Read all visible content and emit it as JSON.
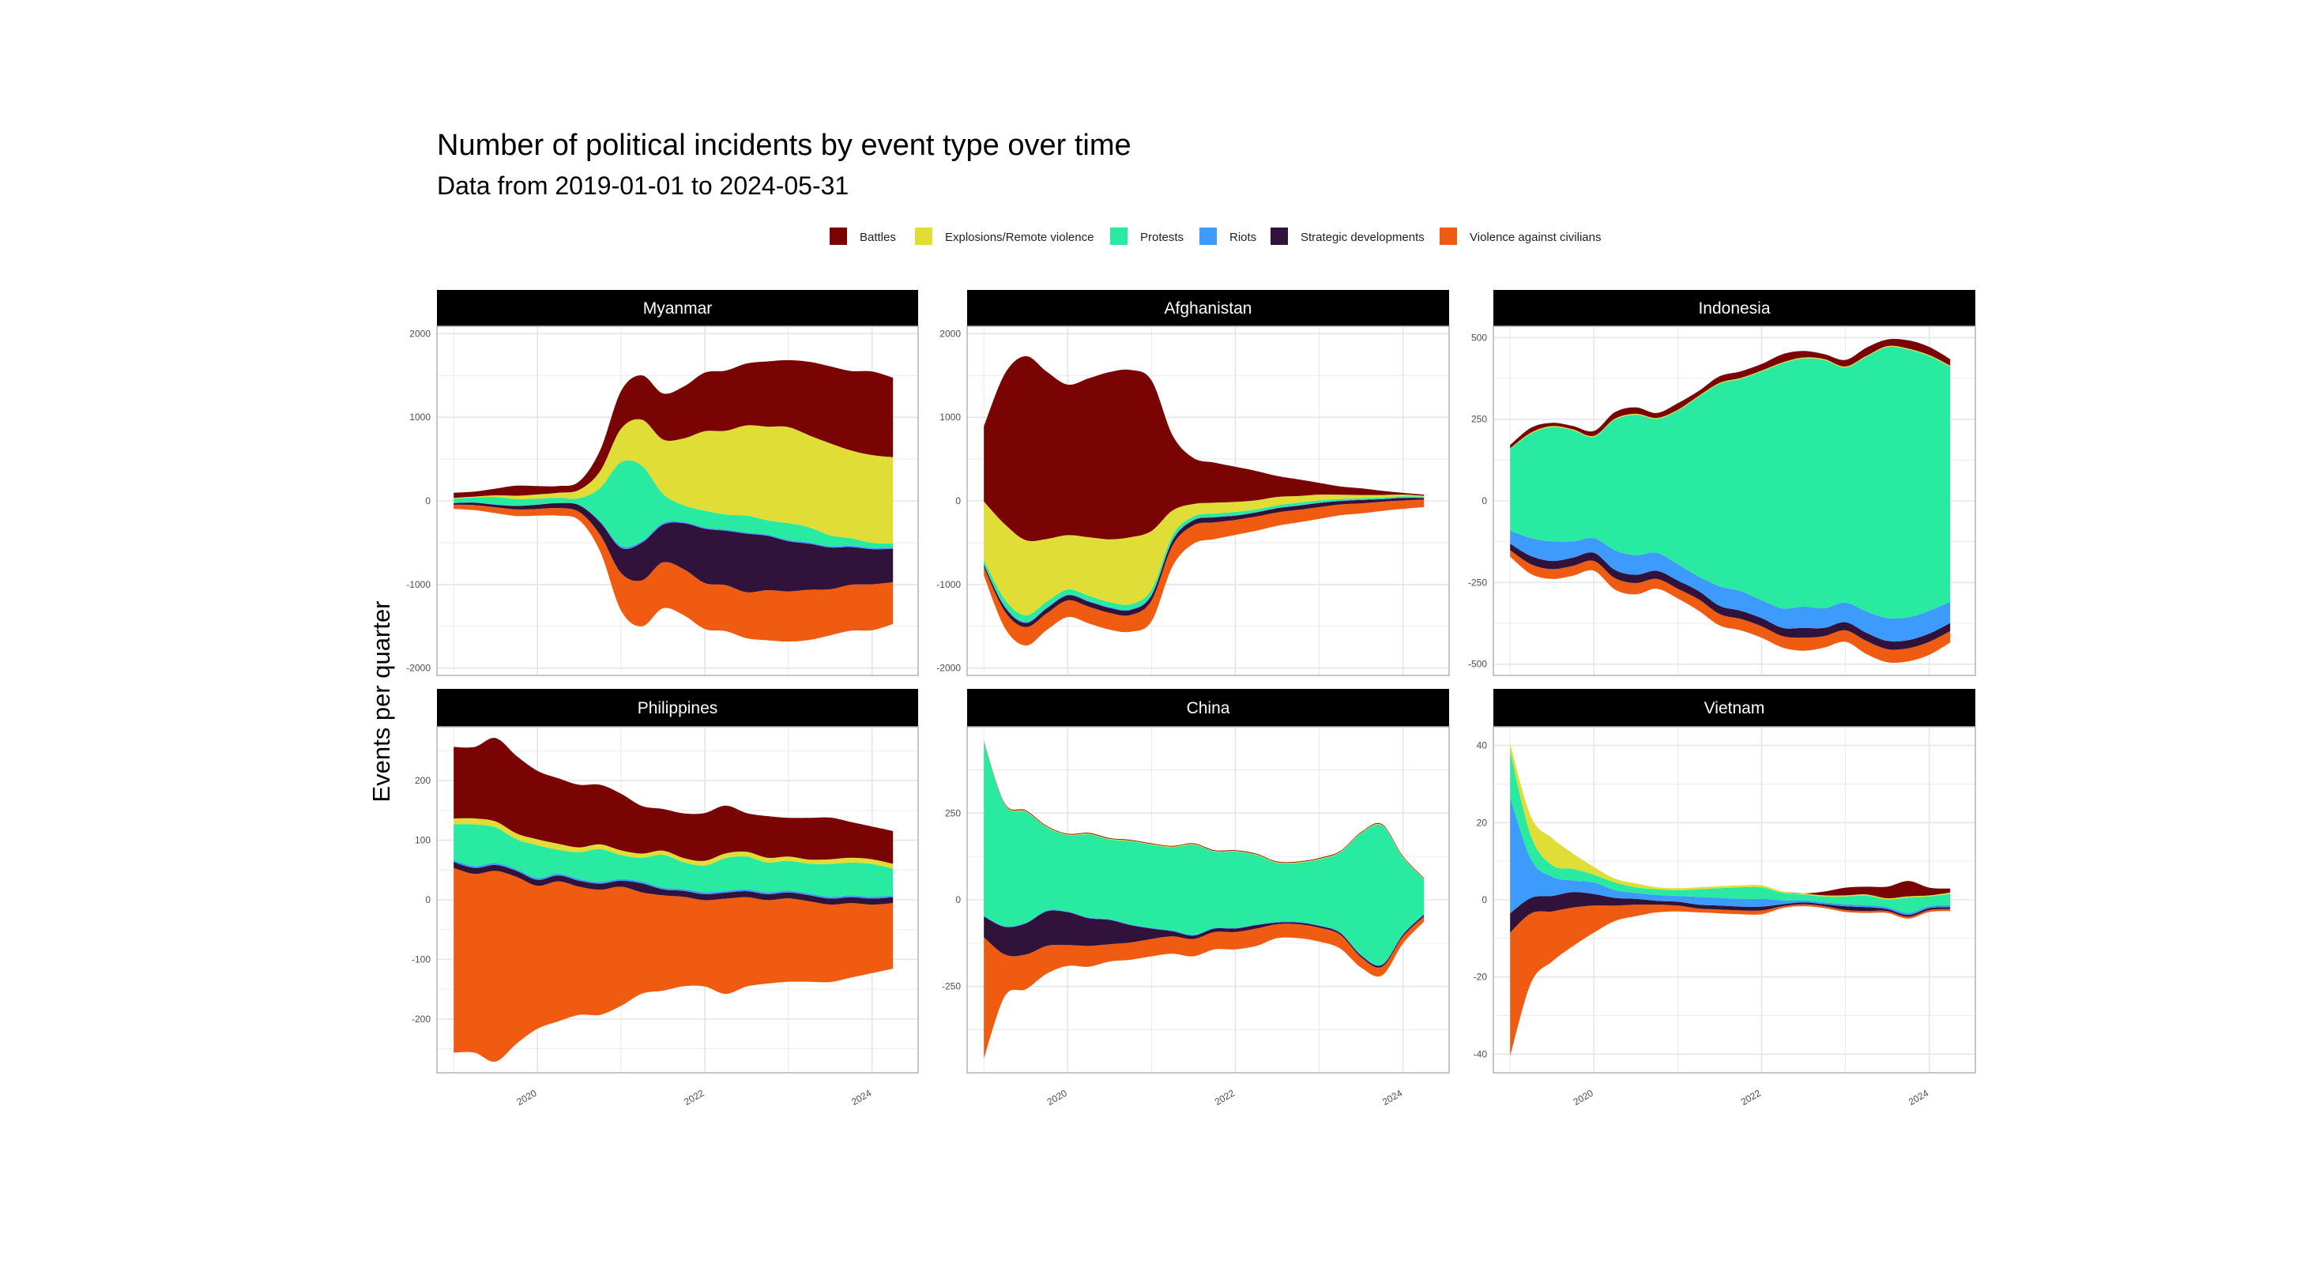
{
  "chart_data": {
    "type": "area",
    "title": "Number of political incidents by event type over time",
    "subtitle": "Data from 2019-01-01 to 2024-05-31",
    "ylabel": "Events per quarter",
    "legend_position": "top",
    "grid": true,
    "series_names": [
      "Battles",
      "Explosions/Remote violence",
      "Protests",
      "Riots",
      "Strategic developments",
      "Violence against civilians"
    ],
    "colors": {
      "Battles": "#7a0403",
      "Explosions/Remote violence": "#e1dd37",
      "Protests": "#28eaa0",
      "Riots": "#3e9bfe",
      "Strategic developments": "#30123b",
      "Violence against civilians": "#f05b12"
    },
    "x_ticks": [
      "2020",
      "2022",
      "2024"
    ],
    "x": [
      2019.0,
      2019.25,
      2019.5,
      2019.75,
      2020.0,
      2020.25,
      2020.5,
      2020.75,
      2021.0,
      2021.25,
      2021.5,
      2021.75,
      2022.0,
      2022.25,
      2022.5,
      2022.75,
      2023.0,
      2023.25,
      2023.5,
      2023.75,
      2024.0,
      2024.25
    ],
    "panels": [
      {
        "title": "Myanmar",
        "y_ticks": [
          "2000",
          "1000",
          "0",
          "-1000",
          "-2000"
        ],
        "ylim": [
          -2050,
          2050
        ],
        "series": {
          "Battles": [
            60,
            60,
            80,
            120,
            100,
            80,
            100,
            250,
            450,
            530,
            550,
            620,
            700,
            720,
            740,
            780,
            800,
            880,
            920,
            950,
            1000,
            950
          ],
          "Explosions/Remote violence": [
            10,
            10,
            20,
            40,
            50,
            60,
            100,
            200,
            400,
            550,
            650,
            800,
            950,
            1000,
            1080,
            1120,
            1150,
            1100,
            1100,
            1050,
            1050,
            1030
          ],
          "Protests": [
            50,
            60,
            90,
            80,
            70,
            60,
            80,
            400,
            1000,
            900,
            350,
            200,
            200,
            180,
            200,
            170,
            200,
            180,
            130,
            90,
            60,
            50
          ],
          "Riots": [
            2,
            2,
            3,
            3,
            3,
            3,
            4,
            10,
            25,
            20,
            20,
            15,
            15,
            15,
            15,
            15,
            15,
            15,
            15,
            15,
            15,
            15
          ],
          "Strategic developments": [
            20,
            30,
            30,
            40,
            50,
            60,
            80,
            150,
            300,
            450,
            450,
            550,
            650,
            650,
            700,
            650,
            600,
            550,
            500,
            450,
            420,
            400
          ],
          "Violence against civilians": [
            50,
            60,
            70,
            80,
            80,
            90,
            100,
            200,
            450,
            550,
            550,
            550,
            550,
            550,
            550,
            600,
            600,
            600,
            550,
            550,
            550,
            500
          ]
        }
      },
      {
        "title": "Afghanistan",
        "y_ticks": [
          "2000",
          "1000",
          "0",
          "-1000",
          "-2000"
        ],
        "ylim": [
          -2050,
          2050
        ],
        "series": {
          "Battles": [
            900,
            1800,
            2200,
            2000,
            1800,
            1900,
            2000,
            2000,
            1800,
            900,
            550,
            480,
            420,
            350,
            250,
            200,
            140,
            100,
            80,
            50,
            20,
            15
          ],
          "Explosions/Remote violence": [
            700,
            900,
            900,
            750,
            650,
            700,
            750,
            800,
            700,
            300,
            150,
            130,
            120,
            110,
            100,
            80,
            70,
            50,
            40,
            30,
            20,
            10
          ],
          "Protests": [
            50,
            80,
            80,
            70,
            60,
            60,
            60,
            60,
            60,
            50,
            40,
            40,
            40,
            30,
            30,
            30,
            25,
            20,
            15,
            15,
            15,
            10
          ],
          "Riots": [
            5,
            10,
            10,
            10,
            10,
            10,
            10,
            10,
            10,
            10,
            5,
            5,
            5,
            5,
            5,
            5,
            5,
            5,
            5,
            5,
            5,
            5
          ],
          "Strategic developments": [
            30,
            50,
            50,
            60,
            60,
            60,
            60,
            60,
            60,
            60,
            60,
            60,
            50,
            50,
            50,
            50,
            50,
            40,
            40,
            30,
            30,
            20
          ],
          "Violence against civilians": [
            100,
            200,
            220,
            200,
            200,
            200,
            200,
            200,
            250,
            250,
            220,
            200,
            180,
            170,
            160,
            150,
            140,
            130,
            120,
            110,
            100,
            90
          ]
        }
      },
      {
        "title": "Indonesia",
        "y_ticks": [
          "500",
          "250",
          "0",
          "-250",
          "-500"
        ],
        "ylim": [
          -525,
          525
        ],
        "series": {
          "Battles": [
            10,
            15,
            10,
            10,
            15,
            20,
            20,
            15,
            20,
            15,
            20,
            20,
            20,
            25,
            20,
            15,
            20,
            25,
            20,
            25,
            25,
            20
          ],
          "Explosions/Remote violence": [
            2,
            3,
            3,
            3,
            3,
            3,
            3,
            3,
            3,
            3,
            3,
            3,
            3,
            3,
            3,
            3,
            3,
            3,
            3,
            3,
            3,
            3
          ],
          "Protests": [
            250,
            320,
            350,
            340,
            310,
            400,
            430,
            410,
            470,
            550,
            620,
            650,
            700,
            750,
            760,
            760,
            720,
            780,
            830,
            820,
            780,
            720
          ],
          "Riots": [
            40,
            55,
            60,
            50,
            45,
            60,
            60,
            55,
            50,
            45,
            60,
            60,
            55,
            60,
            65,
            60,
            60,
            65,
            70,
            70,
            70,
            65
          ],
          "Strategic developments": [
            20,
            25,
            25,
            25,
            25,
            25,
            25,
            25,
            25,
            25,
            25,
            25,
            25,
            25,
            30,
            25,
            25,
            25,
            25,
            25,
            25,
            25
          ],
          "Violence against civilians": [
            20,
            30,
            30,
            30,
            30,
            35,
            35,
            30,
            30,
            35,
            35,
            35,
            35,
            35,
            40,
            35,
            35,
            40,
            40,
            40,
            40,
            35
          ]
        }
      },
      {
        "title": "Philippines",
        "y_ticks": [
          "200",
          "100",
          "0",
          "-100",
          "-200"
        ],
        "ylim": [
          -285,
          285
        ],
        "series": {
          "Battles": [
            120,
            120,
            140,
            130,
            115,
            110,
            105,
            100,
            95,
            80,
            70,
            75,
            80,
            80,
            65,
            70,
            65,
            70,
            70,
            60,
            55,
            55
          ],
          "Explosions/Remote violence": [
            10,
            10,
            10,
            10,
            10,
            10,
            8,
            8,
            8,
            7,
            7,
            7,
            8,
            8,
            8,
            8,
            7,
            7,
            8,
            8,
            8,
            8
          ],
          "Protests": [
            60,
            70,
            60,
            50,
            55,
            40,
            45,
            55,
            40,
            40,
            55,
            45,
            45,
            55,
            55,
            50,
            50,
            50,
            55,
            55,
            55,
            45
          ],
          "Riots": [
            3,
            3,
            3,
            3,
            3,
            3,
            3,
            3,
            3,
            3,
            3,
            3,
            3,
            3,
            3,
            3,
            3,
            3,
            3,
            3,
            3,
            3
          ],
          "Strategic developments": [
            10,
            10,
            10,
            10,
            10,
            10,
            10,
            10,
            10,
            15,
            10,
            10,
            10,
            10,
            10,
            10,
            10,
            10,
            10,
            10,
            10,
            10
          ],
          "Violence against civilians": [
            310,
            300,
            320,
            280,
            240,
            235,
            215,
            210,
            200,
            170,
            160,
            150,
            145,
            160,
            150,
            140,
            140,
            135,
            130,
            125,
            115,
            110
          ]
        }
      },
      {
        "title": "China",
        "y_ticks": [
          "250",
          "0",
          "-250"
        ],
        "ylim": [
          -490,
          490
        ],
        "series": {
          "Battles": [
            2,
            2,
            2,
            2,
            2,
            2,
            2,
            2,
            2,
            2,
            2,
            2,
            2,
            2,
            2,
            2,
            2,
            2,
            2,
            2,
            2,
            2
          ],
          "Explosions/Remote violence": [
            2,
            2,
            2,
            2,
            2,
            2,
            2,
            2,
            2,
            2,
            2,
            2,
            2,
            2,
            2,
            2,
            2,
            2,
            2,
            2,
            2,
            2
          ],
          "Protests": [
            500,
            350,
            320,
            240,
            220,
            240,
            230,
            240,
            240,
            240,
            260,
            220,
            220,
            200,
            170,
            170,
            190,
            230,
            350,
            400,
            220,
            100
          ],
          "Riots": [
            2,
            2,
            2,
            2,
            2,
            2,
            2,
            2,
            2,
            2,
            2,
            2,
            2,
            2,
            2,
            2,
            2,
            2,
            2,
            2,
            2,
            2
          ],
          "Strategic developments": [
            60,
            80,
            90,
            100,
            95,
            80,
            70,
            50,
            30,
            15,
            10,
            10,
            10,
            10,
            5,
            5,
            5,
            5,
            5,
            5,
            5,
            5
          ],
          "Violence against civilians": [
            350,
            120,
            100,
            80,
            60,
            60,
            50,
            50,
            50,
            50,
            50,
            50,
            50,
            50,
            40,
            40,
            40,
            40,
            30,
            25,
            20,
            15
          ]
        }
      },
      {
        "title": "Vietnam",
        "y_ticks": [
          "40",
          "20",
          "0",
          "-20",
          "-40"
        ],
        "ylim": [
          -44,
          44
        ],
        "series": {
          "Battles": [
            0,
            0,
            0,
            0,
            0,
            0,
            0,
            0,
            0,
            0,
            0,
            0,
            0,
            0,
            0,
            1,
            2,
            2,
            3,
            4,
            2,
            1
          ],
          "Explosions/Remote violence": [
            2,
            5,
            7,
            4,
            2,
            1,
            1,
            0.5,
            0.5,
            0.5,
            0.5,
            0.5,
            0.5,
            0.3,
            0.3,
            0.3,
            0.3,
            0.3,
            0.3,
            0.3,
            0.3,
            0.3
          ],
          "Protests": [
            12,
            6,
            3,
            3,
            2,
            2,
            1.5,
            1.5,
            1.5,
            2,
            2.5,
            3,
            3,
            2,
            1.5,
            1.5,
            2,
            2.5,
            2,
            4,
            2.5,
            3
          ],
          "Riots": [
            30,
            10,
            5,
            3,
            3,
            2,
            1.5,
            1.5,
            1.5,
            2,
            2,
            2,
            2,
            1,
            0.5,
            0.5,
            0.5,
            0.5,
            0.5,
            0.5,
            0.5,
            0.5
          ],
          "Strategic developments": [
            5,
            4,
            4,
            4,
            3,
            2,
            1.5,
            1,
            1,
            1,
            1,
            1,
            1,
            0.5,
            0.5,
            0.5,
            1,
            1,
            0.5,
            0.5,
            0.5,
            0.5
          ],
          "Violence against civilians": [
            32,
            18,
            13,
            10,
            7,
            4,
            3,
            2,
            1.5,
            1,
            1,
            1,
            1,
            0.5,
            0.5,
            0.5,
            0.5,
            0.5,
            0.5,
            0.5,
            0.5,
            0.5
          ]
        }
      }
    ]
  }
}
